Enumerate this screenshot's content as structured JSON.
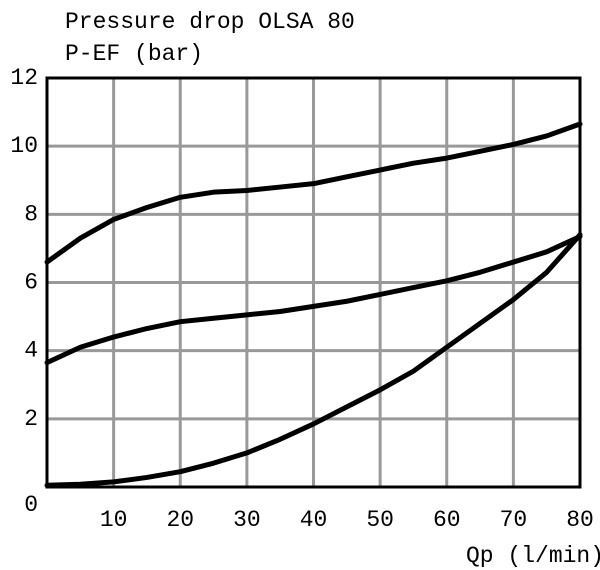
{
  "chart_data": {
    "type": "line",
    "title": "Pressure drop OLSA 80",
    "y_label": "P-EF (bar)",
    "x_label": "Qp (l/min)",
    "x": [
      0,
      5,
      10,
      15,
      20,
      25,
      30,
      35,
      40,
      45,
      50,
      55,
      60,
      65,
      70,
      75,
      80
    ],
    "series": [
      {
        "color": "#000000",
        "values": [
          6.6,
          7.3,
          7.85,
          8.2,
          8.5,
          8.65,
          8.7,
          8.8,
          8.9,
          9.1,
          9.3,
          9.5,
          9.65,
          9.85,
          10.05,
          10.3,
          10.65
        ]
      },
      {
        "color": "#000000",
        "values": [
          3.65,
          4.1,
          4.4,
          4.65,
          4.85,
          4.95,
          5.05,
          5.15,
          5.3,
          5.45,
          5.65,
          5.85,
          6.05,
          6.3,
          6.6,
          6.9,
          7.35
        ]
      },
      {
        "color": "#000000",
        "values": [
          0.05,
          0.08,
          0.15,
          0.28,
          0.45,
          0.7,
          1.0,
          1.4,
          1.85,
          2.35,
          2.85,
          3.4,
          4.1,
          4.8,
          5.5,
          6.3,
          7.4
        ]
      }
    ],
    "xlim": [
      0,
      80
    ],
    "xticks": [
      10,
      20,
      30,
      40,
      50,
      60,
      70,
      80
    ],
    "ylim": [
      0,
      12
    ],
    "yticks": [
      0,
      2,
      4,
      6,
      8,
      10,
      12
    ],
    "grid": true
  }
}
